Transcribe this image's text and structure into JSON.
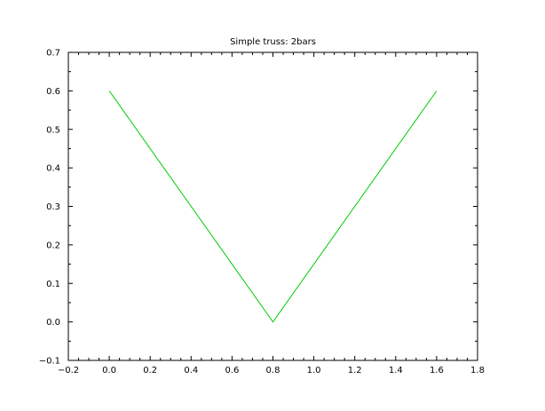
{
  "chart_data": {
    "type": "line",
    "title": "Simple truss: 2bars",
    "xlabel": "",
    "ylabel": "",
    "xlim": [
      -0.2,
      1.8
    ],
    "ylim": [
      -0.1,
      0.7
    ],
    "grid": false,
    "x_ticks": [
      "−0.2",
      "0.0",
      "0.2",
      "0.4",
      "0.6",
      "0.8",
      "1.0",
      "1.2",
      "1.4",
      "1.6",
      "1.8"
    ],
    "x_tick_values": [
      -0.2,
      0.0,
      0.2,
      0.4,
      0.6,
      0.8,
      1.0,
      1.2,
      1.4,
      1.6,
      1.8
    ],
    "y_ticks": [
      "−0.1",
      "0.0",
      "0.1",
      "0.2",
      "0.3",
      "0.4",
      "0.5",
      "0.6",
      "0.7"
    ],
    "y_tick_values": [
      -0.1,
      0.0,
      0.1,
      0.2,
      0.3,
      0.4,
      0.5,
      0.6,
      0.7
    ],
    "series": [
      {
        "color": "#00cc00",
        "x": [
          0.0,
          0.8,
          1.6
        ],
        "y": [
          0.6,
          0.0,
          0.6
        ]
      }
    ]
  }
}
